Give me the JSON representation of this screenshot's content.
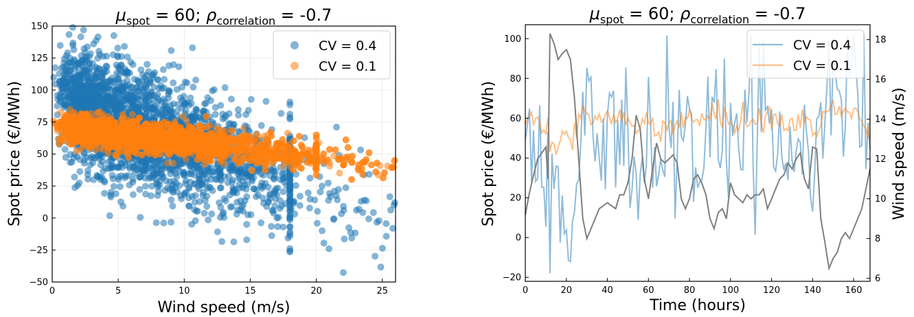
{
  "colors": {
    "blue": "#1f77b4",
    "orange": "#ff7f0e",
    "gray": "#7f7f7f",
    "grid": "#e6e6e6"
  },
  "chart_data": [
    {
      "type": "scatter",
      "title": {
        "mu": "μ",
        "mu_sub": "spot",
        "mid": " = 60; ",
        "rho": "ρ",
        "rho_sub": "correlation",
        "tail": " = -0.7"
      },
      "xlabel": "Wind speed (m/s)",
      "ylabel": "Spot price (€/MWh)",
      "xlim": [
        0,
        26
      ],
      "ylim": [
        -50,
        150
      ],
      "xticks": [
        "0",
        "5",
        "10",
        "15",
        "20",
        "25"
      ],
      "yticks": [
        "−50",
        "−25",
        "0",
        "25",
        "50",
        "75",
        "100",
        "125",
        "150"
      ],
      "grid": true,
      "legend_position": "top-right",
      "series": [
        {
          "name": "CV = 0.4",
          "color": "#1f77b4",
          "mean_at_0": 95,
          "slope": -3.8,
          "spread": 22,
          "x_max_typical": 18,
          "x_max": 26
        },
        {
          "name": "CV = 0.1",
          "color": "#ff7f0e",
          "mean_at_0": 72,
          "slope": -1.2,
          "spread": 6,
          "x_max_typical": 20,
          "x_max": 26
        }
      ]
    },
    {
      "type": "line",
      "title": {
        "mu": "μ",
        "mu_sub": "spot",
        "mid": " = 60; ",
        "rho": "ρ",
        "rho_sub": "correlation",
        "tail": " = -0.7"
      },
      "xlabel": "Time (hours)",
      "ylabel": "Spot price (€/MWh)",
      "y2label": "Wind speed (m/s)",
      "xlim": [
        0,
        168
      ],
      "ylim": [
        -22,
        107
      ],
      "y2lim": [
        5.85,
        18.75
      ],
      "xticks": [
        "0",
        "20",
        "40",
        "60",
        "80",
        "100",
        "120",
        "140",
        "160"
      ],
      "yticks": [
        "−20",
        "0",
        "20",
        "40",
        "60",
        "80",
        "100"
      ],
      "y2ticks": [
        "6",
        "8",
        "10",
        "12",
        "14",
        "16",
        "18"
      ],
      "grid": false,
      "legend_position": "top-right",
      "series": [
        {
          "name": "CV = 0.4",
          "color": "#1f77b4",
          "axis": "left",
          "mean": 45,
          "amplitude": 25
        },
        {
          "name": "CV = 0.1",
          "color": "#ff7f0e",
          "axis": "left",
          "mean": 58,
          "amplitude": 6
        },
        {
          "name": "",
          "color": "#7f7f7f",
          "axis": "right",
          "x": [
            0,
            2,
            4,
            6,
            8,
            10,
            11,
            12,
            14,
            16,
            18,
            20,
            22,
            24,
            26,
            28,
            30,
            32,
            34,
            36,
            40,
            44,
            46,
            48,
            50,
            52,
            54,
            56,
            58,
            60,
            62,
            64,
            66,
            68,
            70,
            72,
            74,
            76,
            78,
            80,
            82,
            84,
            86,
            88,
            90,
            92,
            94,
            96,
            98,
            100,
            102,
            104,
            106,
            108,
            110,
            112,
            114,
            116,
            118,
            120,
            122,
            124,
            126,
            128,
            130,
            132,
            134,
            136,
            138,
            140,
            142,
            144,
            146,
            148,
            150,
            152,
            154,
            156,
            158,
            160,
            162,
            164,
            166,
            168
          ],
          "y": [
            9.2,
            10.3,
            11.2,
            12.0,
            12.3,
            12.6,
            11.0,
            18.3,
            17.8,
            17.0,
            17.3,
            17.5,
            17.0,
            15.0,
            12.0,
            9.0,
            8.0,
            8.5,
            9.0,
            9.5,
            9.8,
            9.5,
            10.2,
            10.2,
            10.8,
            12.0,
            14.2,
            13.5,
            11.0,
            10.0,
            11.5,
            12.8,
            12.0,
            11.8,
            12.0,
            12.2,
            11.8,
            10.0,
            9.5,
            10.0,
            11.0,
            11.2,
            10.8,
            10.2,
            9.0,
            8.5,
            9.3,
            9.5,
            9.0,
            10.8,
            10.2,
            10.0,
            9.8,
            10.2,
            10.0,
            10.2,
            10.2,
            10.5,
            9.5,
            10.0,
            10.5,
            11.0,
            11.2,
            11.8,
            11.5,
            12.0,
            12.3,
            11.0,
            10.5,
            12.6,
            12.5,
            9.0,
            7.8,
            6.5,
            7.0,
            7.3,
            8.0,
            8.3,
            8.0,
            8.5,
            9.0,
            9.5,
            10.5,
            11.5
          ]
        }
      ]
    }
  ]
}
